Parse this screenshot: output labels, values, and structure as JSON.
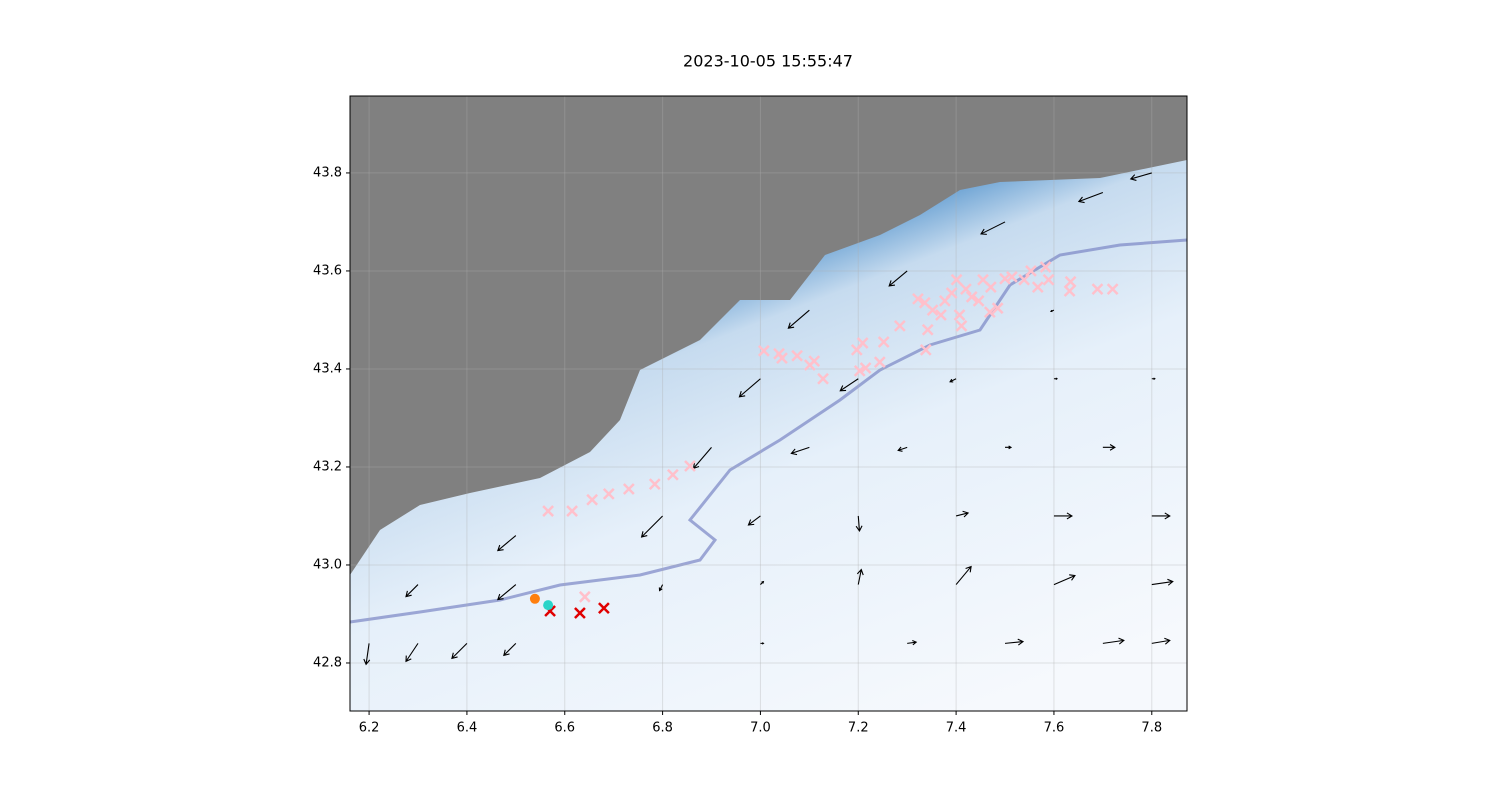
{
  "chart_data": {
    "type": "scatter",
    "title": "2023-10-05 15:55:47",
    "xlim": [
      6.161,
      7.872
    ],
    "ylim": [
      42.702,
      43.957
    ],
    "xticks": [
      6.2,
      6.4,
      6.6,
      6.8,
      {
        "value": 7,
        "label": "7.0"
      },
      7.2,
      7.4,
      7.6,
      7.8
    ],
    "yticks": [
      42.8,
      {
        "value": 43,
        "label": "43.0"
      },
      43.2,
      43.4,
      43.6,
      43.8
    ],
    "grid": true,
    "series": [
      {
        "marker": "x",
        "color": "pink",
        "x": [
          6.566,
          6.615,
          6.656,
          6.69,
          6.731,
          6.784,
          6.821,
          6.856,
          7.007,
          7.038,
          7.044,
          7.075,
          7.101,
          7.11,
          7.128,
          7.197,
          7.209,
          7.203,
          7.215,
          7.244,
          7.252,
          7.285,
          7.322,
          7.336,
          7.342,
          7.338,
          7.352,
          7.369,
          7.377,
          7.391,
          7.401,
          7.407,
          7.411,
          7.42,
          7.432,
          7.446,
          7.455,
          7.471,
          7.469,
          7.485,
          7.5,
          7.514,
          7.539,
          7.553,
          7.567,
          7.583,
          7.589,
          7.634,
          7.632,
          7.689,
          7.72,
          6.641
        ],
        "y": [
          43.11,
          43.11,
          43.133,
          43.145,
          43.155,
          43.165,
          43.184,
          43.202,
          43.437,
          43.431,
          43.422,
          43.427,
          43.408,
          43.416,
          43.38,
          43.439,
          43.453,
          43.396,
          43.402,
          43.414,
          43.455,
          43.488,
          43.543,
          43.535,
          43.48,
          43.439,
          43.52,
          43.51,
          43.539,
          43.555,
          43.582,
          43.51,
          43.488,
          43.563,
          43.547,
          43.539,
          43.582,
          43.567,
          43.516,
          43.524,
          43.584,
          43.588,
          43.582,
          43.6,
          43.567,
          43.608,
          43.582,
          43.578,
          43.559,
          43.563,
          43.563,
          42.935
        ]
      },
      {
        "marker": "x",
        "color": "#e00000",
        "x": [
          6.57,
          6.631,
          6.68
        ],
        "y": [
          42.906,
          42.902,
          42.912
        ]
      },
      {
        "marker": "o",
        "color": "#ff7f0e",
        "x": [
          6.539
        ],
        "y": [
          42.931
        ]
      },
      {
        "marker": "o",
        "color": "#2ad4c8",
        "x": [
          6.566
        ],
        "y": [
          42.918
        ]
      }
    ],
    "quiver": {
      "color": "black",
      "x": [
        6.2,
        6.3,
        6.4,
        6.5,
        7.0,
        7.3,
        7.5,
        7.7,
        7.8,
        6.3,
        6.5,
        6.8,
        7.0,
        7.2,
        7.4,
        7.6,
        7.8,
        6.5,
        6.8,
        7.0,
        7.2,
        7.4,
        7.6,
        7.8,
        6.9,
        7.1,
        7.3,
        7.5,
        7.7,
        7.0,
        7.2,
        7.4,
        7.6,
        7.8,
        7.1,
        7.3,
        7.6,
        7.5,
        7.7,
        7.8
      ],
      "y": [
        42.84,
        42.84,
        42.84,
        42.84,
        42.84,
        42.84,
        42.84,
        42.84,
        42.84,
        42.96,
        42.96,
        42.96,
        42.96,
        42.96,
        42.96,
        42.96,
        42.96,
        43.06,
        43.1,
        43.1,
        43.1,
        43.1,
        43.1,
        43.1,
        43.24,
        43.24,
        43.24,
        43.24,
        43.24,
        43.38,
        43.38,
        43.38,
        43.38,
        43.38,
        43.52,
        43.6,
        43.52,
        43.7,
        43.76,
        43.8
      ],
      "u": [
        -0.05,
        -0.2,
        -0.25,
        -0.2,
        0.05,
        0.15,
        0.3,
        0.35,
        0.3,
        -0.2,
        -0.3,
        -0.05,
        0.05,
        0.05,
        0.25,
        0.35,
        0.35,
        -0.3,
        -0.35,
        -0.2,
        0.02,
        0.2,
        0.3,
        0.3,
        -0.3,
        -0.3,
        -0.15,
        0.1,
        0.2,
        -0.35,
        -0.3,
        -0.1,
        0.05,
        0.05,
        -0.35,
        -0.3,
        -0.05,
        -0.4,
        -0.4,
        -0.35
      ],
      "v": [
        -0.35,
        -0.3,
        -0.25,
        -0.2,
        0,
        0.02,
        0.03,
        0.05,
        0.05,
        -0.2,
        -0.25,
        -0.1,
        0.05,
        0.25,
        0.3,
        0.15,
        0.05,
        -0.25,
        -0.35,
        -0.15,
        -0.25,
        0.05,
        0,
        0,
        -0.35,
        -0.1,
        -0.05,
        0,
        0,
        -0.3,
        -0.2,
        -0.05,
        0,
        0,
        -0.3,
        -0.25,
        -0.02,
        -0.2,
        -0.15,
        -0.1
      ]
    }
  }
}
